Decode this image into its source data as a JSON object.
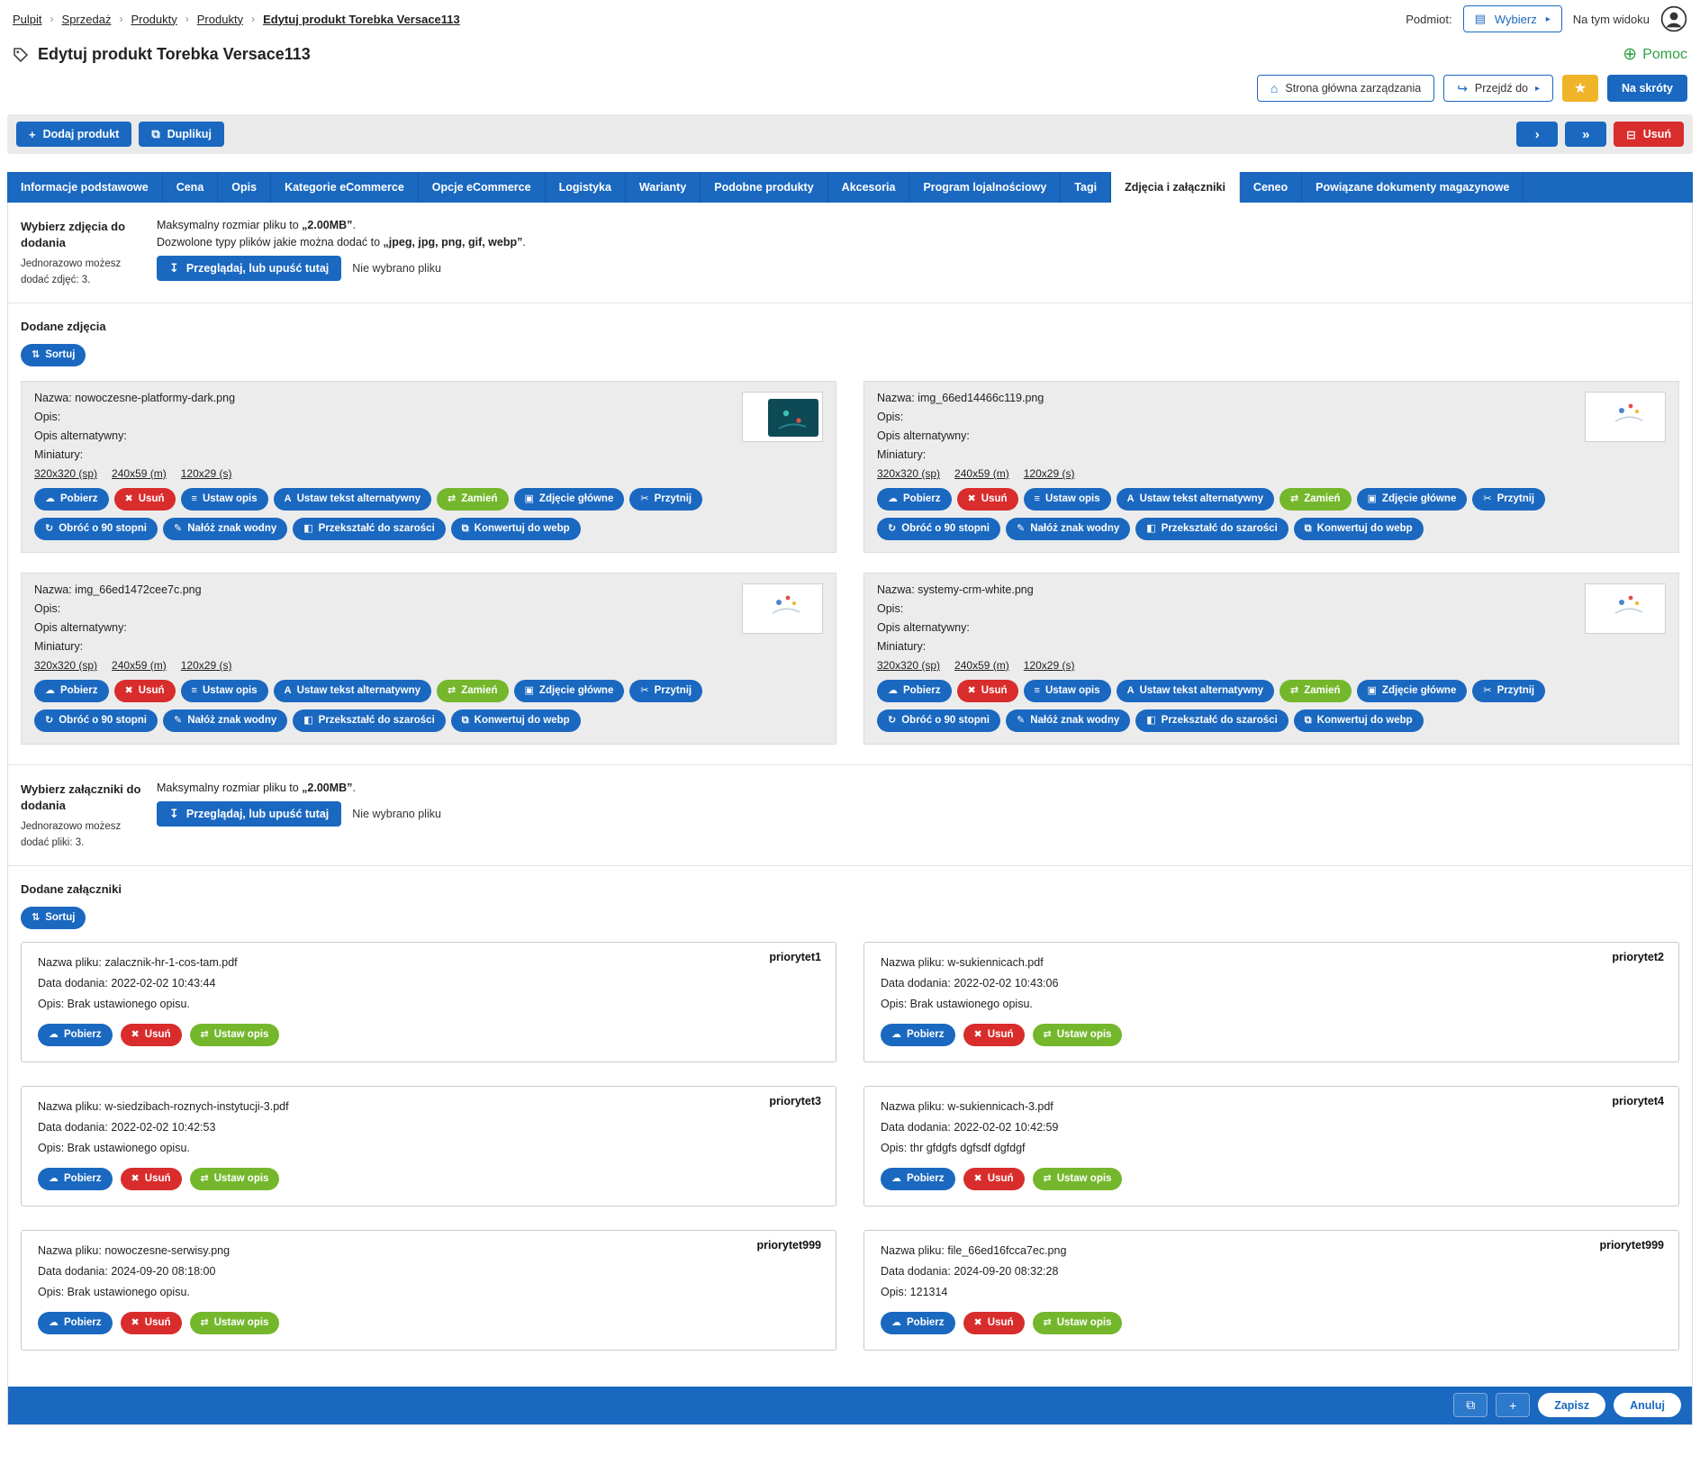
{
  "colors": {
    "primary_blue": "#1a68c0",
    "red": "#d92c2c",
    "green": "#74b72c",
    "help_green": "#2fa042",
    "star_yellow": "#f0b429"
  },
  "breadcrumb": {
    "items": [
      {
        "label": "Pulpit",
        "current": false
      },
      {
        "label": "Sprzedaż",
        "current": false
      },
      {
        "label": "Produkty",
        "current": false
      },
      {
        "label": "Produkty",
        "current": false
      },
      {
        "label": "Edytuj produkt Torebka Versace113",
        "current": true
      }
    ]
  },
  "topbar": {
    "podmiot_label": "Podmiot:",
    "wybierz": "Wybierz",
    "na_tym_widoku": "Na tym widoku"
  },
  "page": {
    "title": "Edytuj produkt Torebka Versace113",
    "help": "Pomoc"
  },
  "quick_actions": {
    "home": "Strona główna zarządzania",
    "goto": "Przejdź do",
    "shortcuts": "Na skróty"
  },
  "toolbar": {
    "add_product": "Dodaj produkt",
    "duplicate": "Duplikuj",
    "delete": "Usuń"
  },
  "tabs": [
    {
      "label": "Informacje podstawowe",
      "active": false
    },
    {
      "label": "Cena",
      "active": false
    },
    {
      "label": "Opis",
      "active": false
    },
    {
      "label": "Kategorie eCommerce",
      "active": false
    },
    {
      "label": "Opcje eCommerce",
      "active": false
    },
    {
      "label": "Logistyka",
      "active": false
    },
    {
      "label": "Warianty",
      "active": false
    },
    {
      "label": "Podobne produkty",
      "active": false
    },
    {
      "label": "Akcesoria",
      "active": false
    },
    {
      "label": "Program lojalnościowy",
      "active": false
    },
    {
      "label": "Tagi",
      "active": false
    },
    {
      "label": "Zdjęcia i załączniki",
      "active": true
    },
    {
      "label": "Ceneo",
      "active": false
    },
    {
      "label": "Powiązane dokumenty magazynowe",
      "active": false
    }
  ],
  "photo_upload": {
    "title": "Wybierz zdjęcia do dodania",
    "subtitle": "Jednorazowo możesz dodać zdjęć: 3.",
    "max": {
      "prefix": "Maksymalny rozmiar pliku to ",
      "bold": "„2.00MB”",
      "suffix": "."
    },
    "allowed": {
      "prefix": "Dozwolone typy plików jakie można dodać to ",
      "bold": "„jpeg, jpg, png, gif, webp”",
      "suffix": "."
    },
    "browse": "Przeglądaj, lub upuść tutaj",
    "no_file": "Nie wybrano pliku"
  },
  "photos_section": {
    "title": "Dodane zdjęcia",
    "sort": "Sortuj"
  },
  "photo_fields": {
    "name": "Nazwa:",
    "description": "Opis:",
    "alt": "Opis alternatywny:",
    "thumbs": "Miniatury:"
  },
  "photo_thumb_links": [
    "320x320 (sp)",
    "240x59 (m)",
    "120x29 (s)"
  ],
  "photo_actions": [
    {
      "name": "download",
      "label": "Pobierz",
      "color": "blue",
      "icon": "download-icon"
    },
    {
      "name": "delete",
      "label": "Usuń",
      "color": "red",
      "icon": "delete-icon"
    },
    {
      "name": "set-description",
      "label": "Ustaw opis",
      "color": "blue",
      "icon": "set-description-icon"
    },
    {
      "name": "set-alt-text",
      "label": "Ustaw tekst alternatywny",
      "color": "blue",
      "icon": "alt-text-icon"
    },
    {
      "name": "replace",
      "label": "Zamień",
      "color": "green",
      "icon": "swap-icon"
    },
    {
      "name": "main-photo",
      "label": "Zdjęcie główne",
      "color": "blue",
      "icon": "main-photo-icon"
    },
    {
      "name": "crop",
      "label": "Przytnij",
      "color": "blue",
      "icon": "crop-icon"
    },
    {
      "name": "rotate-90",
      "label": "Obróć o 90 stopni",
      "color": "blue",
      "icon": "rotate-icon"
    },
    {
      "name": "watermark",
      "label": "Nałóż znak wodny",
      "color": "blue",
      "icon": "watermark-icon"
    },
    {
      "name": "grayscale",
      "label": "Przekształć do szarości",
      "color": "blue",
      "icon": "grayscale-icon"
    },
    {
      "name": "convert-webp",
      "label": "Konwertuj do webp",
      "color": "blue",
      "icon": "webp-icon"
    }
  ],
  "photos": [
    {
      "name": "nowoczesne-platformy-dark.png",
      "thumb": "dark"
    },
    {
      "name": "img_66ed14466c119.png",
      "thumb": "light"
    },
    {
      "name": "img_66ed1472cee7c.png",
      "thumb": "light"
    },
    {
      "name": "systemy-crm-white.png",
      "thumb": "light"
    }
  ],
  "attachment_upload": {
    "title": "Wybierz załączniki do dodania",
    "subtitle": "Jednorazowo możesz dodać pliki: 3.",
    "max": {
      "prefix": "Maksymalny rozmiar pliku to ",
      "bold": "„2.00MB”",
      "suffix": "."
    },
    "browse": "Przeglądaj, lub upuść tutaj",
    "no_file": "Nie wybrano pliku"
  },
  "attachments_section": {
    "title": "Dodane załączniki",
    "sort": "Sortuj"
  },
  "attachment_fields": {
    "name": "Nazwa pliku:",
    "date": "Data dodania:",
    "description": "Opis:"
  },
  "attachment_actions": [
    {
      "name": "download",
      "label": "Pobierz",
      "color": "blue",
      "icon": "download-icon"
    },
    {
      "name": "delete",
      "label": "Usuń",
      "color": "red",
      "icon": "delete-icon"
    },
    {
      "name": "set-description",
      "label": "Ustaw opis",
      "color": "green",
      "icon": "swap-icon"
    }
  ],
  "attachments": [
    {
      "name": "zalacznik-hr-1-cos-tam.pdf",
      "date": "2022-02-02 10:43:44",
      "description": "Brak ustawionego opisu.",
      "priority": "priorytet1"
    },
    {
      "name": "w-sukiennicach.pdf",
      "date": "2022-02-02 10:43:06",
      "description": "Brak ustawionego opisu.",
      "priority": "priorytet2"
    },
    {
      "name": "w-siedzibach-roznych-instytucji-3.pdf",
      "date": "2022-02-02 10:42:53",
      "description": "Brak ustawionego opisu.",
      "priority": "priorytet3"
    },
    {
      "name": "w-sukiennicach-3.pdf",
      "date": "2022-02-02 10:42:59",
      "description": "thr gfdgfs dgfsdf dgfdgf",
      "priority": "priorytet4"
    },
    {
      "name": "nowoczesne-serwisy.png",
      "date": "2024-09-20 08:18:00",
      "description": "Brak ustawionego opisu.",
      "priority": "priorytet999"
    },
    {
      "name": "file_66ed16fcca7ec.png",
      "date": "2024-09-20 08:32:28",
      "description": "121314",
      "priority": "priorytet999"
    }
  ],
  "footer": {
    "save": "Zapisz",
    "cancel": "Anuluj"
  },
  "icons": {
    "breadcrumb-separator": "›",
    "entity-icon": "▤",
    "chevron-right-icon": "▸",
    "globe-icon": "⊕",
    "home-icon": "⌂",
    "goto-icon": "↪",
    "star-icon": "★",
    "plus-icon": "+",
    "duplicate-icon": "⧉",
    "next-icon": "›",
    "double-arrow-icon": "»",
    "minus-icon": "⊟",
    "upload-icon": "↧",
    "sort-icon": "⇅",
    "download-icon": "☁",
    "delete-icon": "✖",
    "set-description-icon": "≡",
    "alt-text-icon": "A",
    "swap-icon": "⇄",
    "main-photo-icon": "▣",
    "crop-icon": "✂",
    "rotate-icon": "↻",
    "watermark-icon": "✎",
    "grayscale-icon": "◧",
    "webp-icon": "⧉",
    "copy-icon": "⧉"
  }
}
